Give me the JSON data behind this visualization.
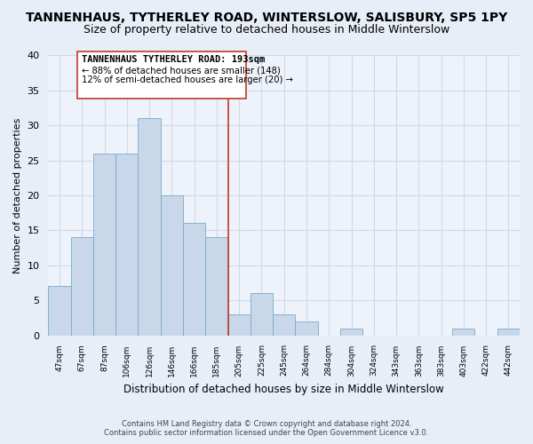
{
  "title": "TANNENHAUS, TYTHERLEY ROAD, WINTERSLOW, SALISBURY, SP5 1PY",
  "subtitle": "Size of property relative to detached houses in Middle Winterslow",
  "xlabel": "Distribution of detached houses by size in Middle Winterslow",
  "ylabel": "Number of detached properties",
  "bin_labels": [
    "47sqm",
    "67sqm",
    "87sqm",
    "106sqm",
    "126sqm",
    "146sqm",
    "166sqm",
    "185sqm",
    "205sqm",
    "225sqm",
    "245sqm",
    "264sqm",
    "284sqm",
    "304sqm",
    "324sqm",
    "343sqm",
    "363sqm",
    "383sqm",
    "403sqm",
    "422sqm",
    "442sqm"
  ],
  "bar_heights": [
    7,
    14,
    26,
    26,
    31,
    20,
    16,
    14,
    3,
    6,
    3,
    2,
    0,
    1,
    0,
    0,
    0,
    0,
    1,
    0,
    1
  ],
  "bar_color": "#c8d8ea",
  "bar_edge_color": "#7aaac8",
  "vline_bar_index": 7,
  "vline_color": "#c0392b",
  "annotation_title": "TANNENHAUS TYTHERLEY ROAD: 193sqm",
  "annotation_line1": "← 88% of detached houses are smaller (148)",
  "annotation_line2": "12% of semi-detached houses are larger (20) →",
  "ylim": [
    0,
    40
  ],
  "yticks": [
    0,
    5,
    10,
    15,
    20,
    25,
    30,
    35,
    40
  ],
  "footnote1": "Contains HM Land Registry data © Crown copyright and database right 2024.",
  "footnote2": "Contains public sector information licensed under the Open Government Licence v3.0.",
  "bg_color": "#e8eef8",
  "plot_bg_color": "#eef2fa",
  "title_fontsize": 10,
  "subtitle_fontsize": 9,
  "grid_color": "#d0d8e8"
}
